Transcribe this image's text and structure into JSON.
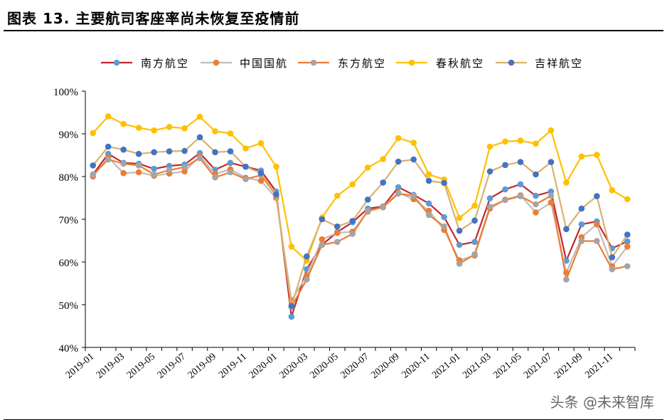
{
  "title": "图表 13. 主要航司客座率尚未恢复至疫情前",
  "watermark": "头条 @未来智库",
  "chart_data": {
    "type": "line",
    "x": [
      "2019-01",
      "2019-02",
      "2019-03",
      "2019-04",
      "2019-05",
      "2019-06",
      "2019-07",
      "2019-08",
      "2019-09",
      "2019-10",
      "2019-11",
      "2019-12",
      "2020-01",
      "2020-02",
      "2020-03",
      "2020-04",
      "2020-05",
      "2020-06",
      "2020-07",
      "2020-08",
      "2020-09",
      "2020-10",
      "2020-11",
      "2020-12",
      "2021-01",
      "2021-02",
      "2021-03",
      "2021-04",
      "2021-05",
      "2021-06",
      "2021-07",
      "2021-08",
      "2021-09",
      "2021-10",
      "2021-11",
      "2021-12"
    ],
    "x_tick_labels": [
      "2019-01",
      "2019-03",
      "2019-05",
      "2019-07",
      "2019-09",
      "2019-11",
      "2020-01",
      "2020-03",
      "2020-05",
      "2020-07",
      "2020-09",
      "2020-11",
      "2021-01",
      "2021-03",
      "2021-05",
      "2021-07",
      "2021-09",
      "2021-11"
    ],
    "ylim": [
      40,
      100
    ],
    "y_tick_labels": [
      "40%",
      "50%",
      "60%",
      "70%",
      "80%",
      "90%",
      "100%"
    ],
    "y_ticks": [
      40,
      50,
      60,
      70,
      80,
      90,
      100
    ],
    "legend_position": "top",
    "series": [
      {
        "name": "南方航空",
        "line_color": "#C0282D",
        "marker_color": "#5B9BD5",
        "marker": "circle",
        "values": [
          80.5,
          85.3,
          83.2,
          83.0,
          81.8,
          82.5,
          82.8,
          85.5,
          81.6,
          83.2,
          82.3,
          81.4,
          76.5,
          47.2,
          58.3,
          64.0,
          67.0,
          69.3,
          72.5,
          73.0,
          77.5,
          75.7,
          73.7,
          70.5,
          64.0,
          64.7,
          74.9,
          77.0,
          78.2,
          75.5,
          76.5,
          60.3,
          68.8,
          69.5,
          63.2,
          64.8
        ]
      },
      {
        "name": "中国国航",
        "line_color": "#BDBDBD",
        "marker_color": "#ED7D31",
        "marker": "circle",
        "values": [
          80.0,
          84.5,
          80.8,
          81.0,
          80.2,
          80.7,
          81.2,
          84.8,
          80.6,
          81.7,
          79.7,
          79.0,
          75.0,
          51.0,
          56.8,
          65.3,
          66.8,
          67.1,
          71.8,
          72.9,
          76.2,
          74.7,
          72.0,
          67.5,
          60.4,
          61.5,
          72.5,
          74.6,
          75.6,
          71.6,
          73.9,
          57.5,
          65.8,
          68.8,
          59.0,
          63.6
        ]
      },
      {
        "name": "东方航空",
        "line_color": "#ED7D31",
        "marker_color": "#A5A5A5",
        "marker": "circle",
        "values": [
          80.4,
          84.0,
          83.0,
          82.6,
          80.5,
          81.5,
          82.2,
          84.3,
          79.8,
          81.0,
          79.4,
          80.3,
          75.6,
          49.5,
          55.9,
          64.0,
          64.7,
          66.6,
          72.0,
          72.8,
          76.0,
          75.5,
          71.0,
          68.3,
          59.6,
          61.8,
          72.9,
          74.5,
          75.4,
          73.5,
          75.5,
          55.9,
          64.9,
          64.9,
          58.3,
          59.0
        ]
      },
      {
        "name": "春秋航空",
        "line_color": "#FFC000",
        "marker_color": "#FFC000",
        "marker": "circle",
        "values": [
          90.2,
          94.1,
          92.3,
          91.4,
          90.8,
          91.6,
          91.3,
          94.0,
          90.6,
          90.1,
          86.6,
          87.8,
          82.3,
          63.6,
          60.3,
          70.4,
          75.5,
          78.2,
          82.1,
          84.1,
          89.0,
          87.9,
          80.5,
          79.3,
          70.3,
          73.2,
          87.0,
          88.2,
          88.4,
          87.7,
          90.8,
          78.6,
          84.7,
          85.1,
          76.8,
          74.7
        ]
      },
      {
        "name": "吉祥航空",
        "line_color": "#D6B36E",
        "marker_color": "#4472C4",
        "marker": "circle",
        "values": [
          82.6,
          87.0,
          86.3,
          85.3,
          85.7,
          85.9,
          86.0,
          89.2,
          85.7,
          85.9,
          82.3,
          80.8,
          75.8,
          49.7,
          61.3,
          70.0,
          68.3,
          69.6,
          74.6,
          78.6,
          83.5,
          84.0,
          79.0,
          78.5,
          67.3,
          69.7,
          81.2,
          82.7,
          83.4,
          80.5,
          83.4,
          67.7,
          72.5,
          75.4,
          61.1,
          66.4
        ]
      }
    ]
  }
}
